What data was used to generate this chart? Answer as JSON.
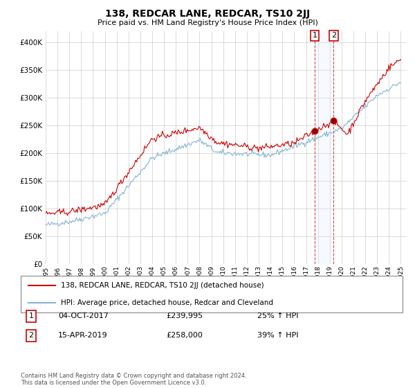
{
  "title": "138, REDCAR LANE, REDCAR, TS10 2JJ",
  "subtitle": "Price paid vs. HM Land Registry's House Price Index (HPI)",
  "ylim": [
    0,
    420000
  ],
  "yticks": [
    0,
    50000,
    100000,
    150000,
    200000,
    250000,
    300000,
    350000,
    400000
  ],
  "line1_color": "#cc0000",
  "line2_color": "#85b4d4",
  "sale1_year": 2017.75,
  "sale1_price": 239995,
  "sale2_year": 2019.29,
  "sale2_price": 258000,
  "legend_label1": "138, REDCAR LANE, REDCAR, TS10 2JJ (detached house)",
  "legend_label2": "HPI: Average price, detached house, Redcar and Cleveland",
  "annotation1_label": "1",
  "annotation1_date": "04-OCT-2017",
  "annotation1_price": "£239,995",
  "annotation1_hpi": "25% ↑ HPI",
  "annotation2_label": "2",
  "annotation2_date": "15-APR-2019",
  "annotation2_price": "£258,000",
  "annotation2_hpi": "39% ↑ HPI",
  "footer": "Contains HM Land Registry data © Crown copyright and database right 2024.\nThis data is licensed under the Open Government Licence v3.0.",
  "background_color": "#ffffff",
  "grid_color": "#cccccc",
  "shade_color": "#ddeeff"
}
